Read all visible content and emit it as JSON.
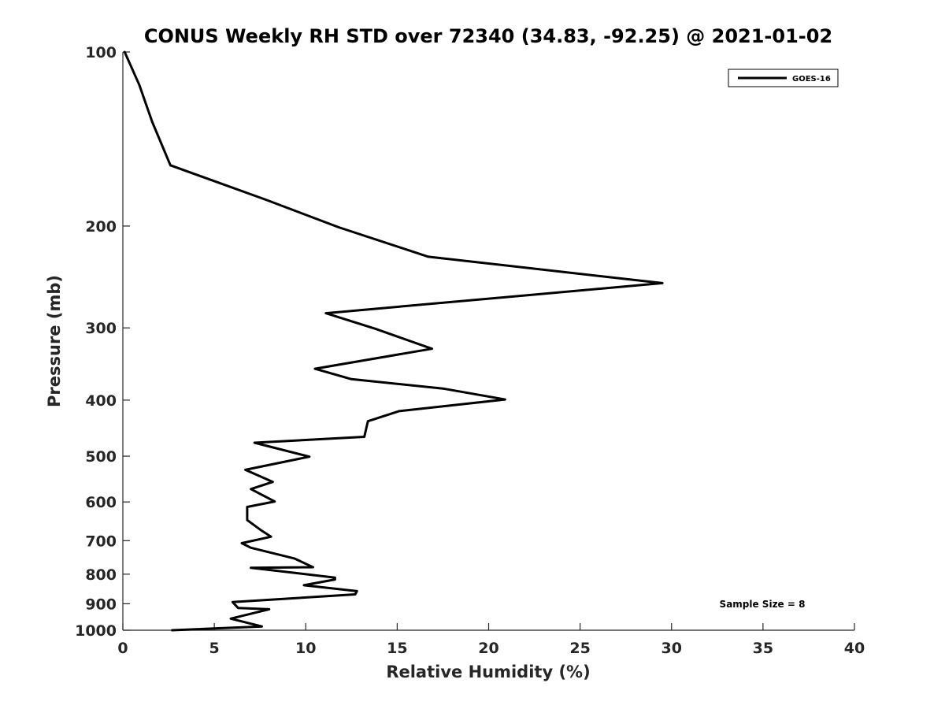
{
  "chart_data": {
    "type": "line",
    "title": "CONUS Weekly RH STD over 72340 (34.83, -92.25) @ 2021-01-02",
    "xlabel": "Relative Humidity (%)",
    "ylabel": "Pressure (mb)",
    "xlim": [
      0,
      40
    ],
    "ylim": [
      100,
      1000
    ],
    "y_scale": "log",
    "y_reversed": true,
    "x_ticks": [
      0,
      5,
      10,
      15,
      20,
      25,
      30,
      35,
      40
    ],
    "y_ticks": [
      100,
      200,
      300,
      400,
      500,
      600,
      700,
      800,
      900,
      1000
    ],
    "grid": false,
    "legend_position": "top-right",
    "series": [
      {
        "name": "GOES-16",
        "color": "#000000",
        "x": [
          0.1,
          0.9,
          1.6,
          2.6,
          7.8,
          11.8,
          16.7,
          29.5,
          11.1,
          13.8,
          16.9,
          10.5,
          12.5,
          17.5,
          20.9,
          15.1,
          13.4,
          13.2,
          7.2,
          10.2,
          6.7,
          8.2,
          7.0,
          8.3,
          6.8,
          6.8,
          7.6,
          8.1,
          6.5,
          7.0,
          9.4,
          10.4,
          7.0,
          11.6,
          11.6,
          9.9,
          12.8,
          12.7,
          6.0,
          6.3,
          8.0,
          5.9,
          7.6,
          2.7
        ],
        "y": [
          100,
          114,
          132,
          157,
          180,
          201,
          226,
          251,
          283,
          301,
          326,
          353,
          368,
          382,
          399,
          418,
          435,
          463,
          474,
          501,
          528,
          554,
          570,
          599,
          612,
          645,
          673,
          689,
          707,
          720,
          752,
          778,
          780,
          811,
          817,
          836,
          856,
          867,
          894,
          915,
          920,
          955,
          985,
          1000
        ]
      }
    ],
    "annotations": [
      "Sample Size = 8"
    ]
  }
}
